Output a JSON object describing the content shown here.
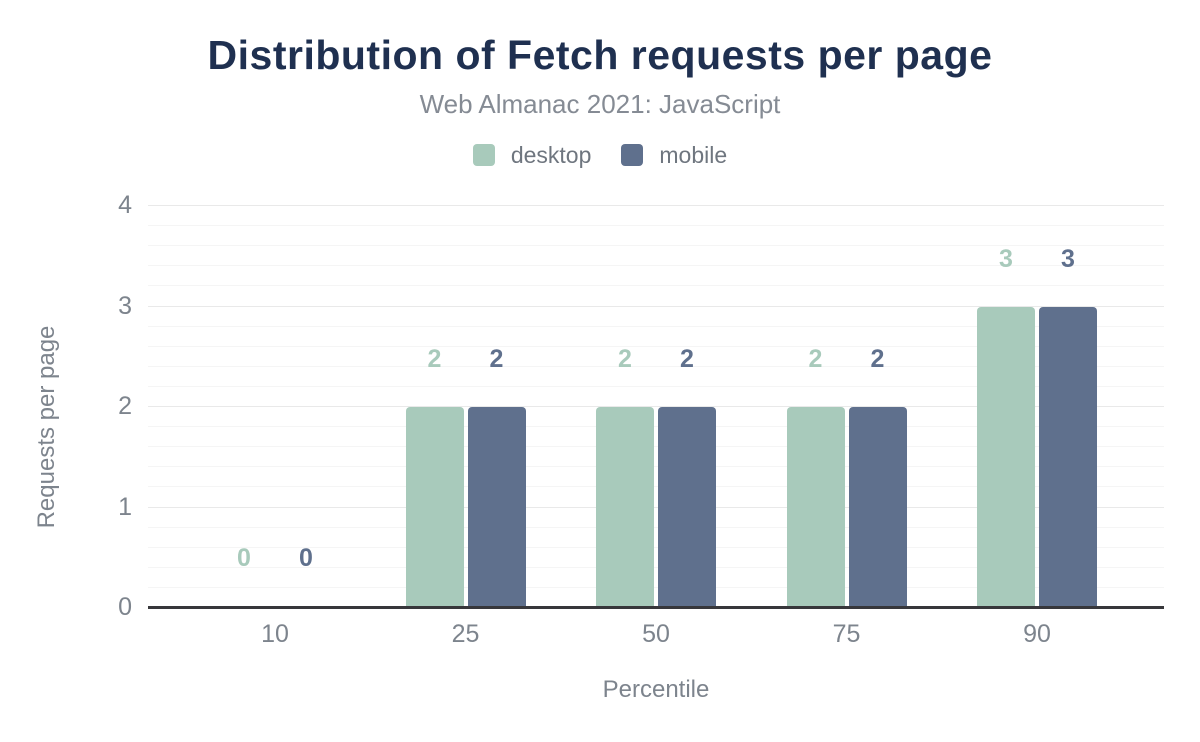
{
  "chart_data": {
    "type": "bar",
    "title": "Distribution of Fetch requests per page",
    "subtitle": "Web Almanac 2021: JavaScript",
    "categories": [
      "10",
      "25",
      "50",
      "75",
      "90"
    ],
    "series": [
      {
        "name": "desktop",
        "color": "#a8cabb",
        "values": [
          0,
          2,
          2,
          2,
          3
        ]
      },
      {
        "name": "mobile",
        "color": "#5f708d",
        "values": [
          0,
          2,
          2,
          2,
          3
        ]
      }
    ],
    "xlabel": "Percentile",
    "ylabel": "Requests per page",
    "ylim": [
      0,
      4
    ],
    "yticks": [
      0,
      1,
      2,
      3,
      4
    ],
    "minor_tick_interval": 0.2,
    "grid": true,
    "legend_position": "top",
    "data_labels": true,
    "title_color": "#1f3050",
    "subtitle_color": "#858b94",
    "axis_label_color": "#7d848d",
    "axis_line_color": "#37373b"
  }
}
